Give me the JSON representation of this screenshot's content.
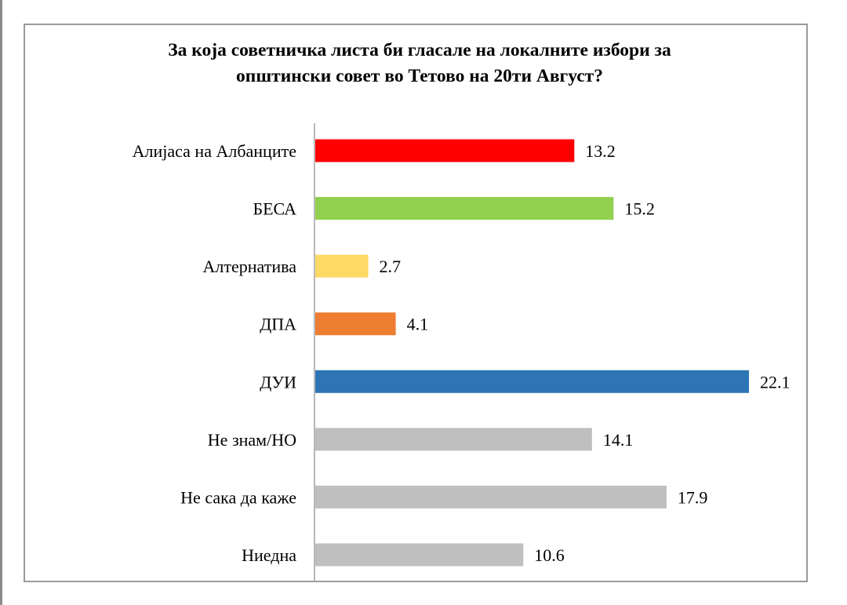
{
  "chart_data": {
    "type": "bar",
    "orientation": "horizontal",
    "title": "За која советничка листа би гласале на локалните избори за општински совет во Тетово на 20ти Август?",
    "title_lines": [
      "За која советничка листа би гласале на локалните избори за",
      "општински совет во Тетово на 20ти Август?"
    ],
    "xlabel": "",
    "ylabel": "",
    "categories": [
      "Алијаса на Албанците",
      "БЕСА",
      "Алтернатива",
      "ДПА",
      "ДУИ",
      "Не знам/НО",
      "Не сака да каже",
      "Ниедна"
    ],
    "values": [
      13.2,
      15.2,
      2.7,
      4.1,
      22.1,
      14.1,
      17.9,
      10.6
    ],
    "value_labels": [
      "13.2",
      "15.2",
      "2.7",
      "4.1",
      "22.1",
      "14.1",
      "17.9",
      "10.6"
    ],
    "colors": [
      "#ff0000",
      "#92d050",
      "#ffd966",
      "#ed7d31",
      "#2e75b6",
      "#bfbfbf",
      "#bfbfbf",
      "#bfbfbf"
    ],
    "xlim": [
      0,
      22.1
    ],
    "grid": false,
    "legend": "none",
    "data_labels": true
  }
}
